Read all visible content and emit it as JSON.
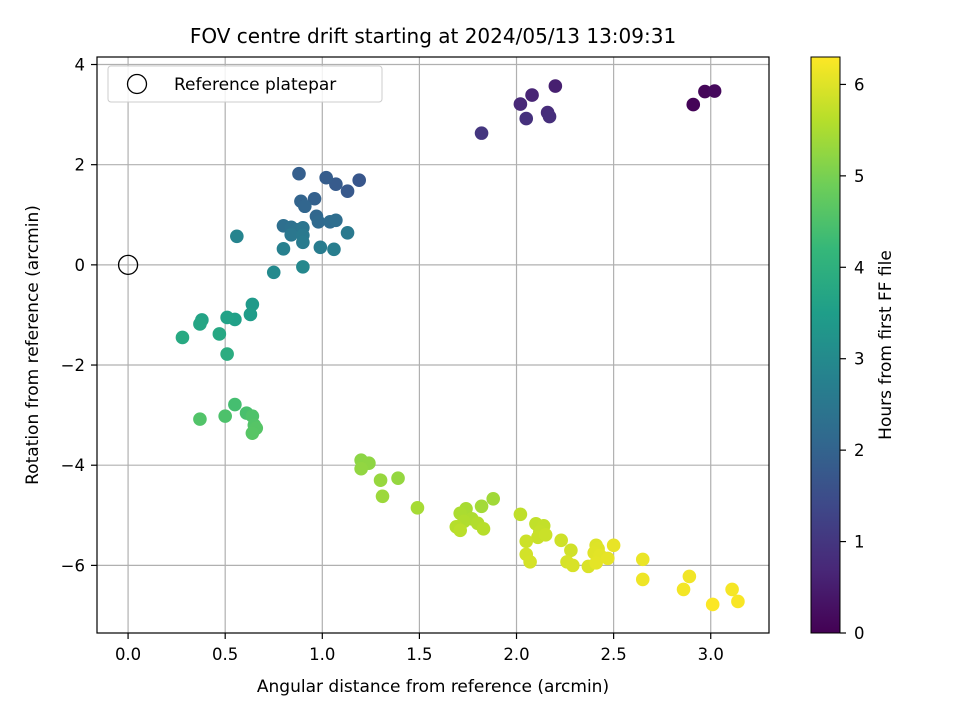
{
  "chart_data": {
    "type": "scatter",
    "title": "FOV centre drift starting at 2024/05/13 13:09:31",
    "xlabel": "Angular distance from reference (arcmin)",
    "ylabel": "Rotation from reference (arcmin)",
    "xlim": [
      -0.16,
      3.3
    ],
    "ylim": [
      -7.35,
      4.15
    ],
    "xticks": [
      0.0,
      0.5,
      1.0,
      1.5,
      2.0,
      2.5,
      3.0
    ],
    "xtick_labels": [
      "0.0",
      "0.5",
      "1.0",
      "1.5",
      "2.0",
      "2.5",
      "3.0"
    ],
    "yticks": [
      4,
      2,
      0,
      -2,
      -4,
      -6
    ],
    "ytick_labels": [
      "4",
      "2",
      "0",
      "−2",
      "−4",
      "−6"
    ],
    "grid": true,
    "legend": {
      "placement": "top-left",
      "entries": [
        "Reference platepar"
      ]
    },
    "reference_point": {
      "x": 0.0,
      "y": 0.0,
      "label": "Reference platepar",
      "marker": "hollow-circle"
    },
    "colorbar": {
      "label": "Hours from first FF file",
      "colormap": "viridis",
      "range": [
        0,
        6.3
      ],
      "ticks": [
        0,
        1,
        2,
        3,
        4,
        5,
        6
      ],
      "tick_labels": [
        "0",
        "1",
        "2",
        "3",
        "4",
        "5",
        "6"
      ],
      "colors": [
        "#440154",
        "#482878",
        "#3e4989",
        "#31688e",
        "#26828e",
        "#1f9e89",
        "#35b779",
        "#6ece58",
        "#b5de2b",
        "#fde725"
      ]
    },
    "points": [
      {
        "x": 2.91,
        "y": 3.2,
        "t": 0.05
      },
      {
        "x": 2.97,
        "y": 3.46,
        "t": 0.1
      },
      {
        "x": 3.02,
        "y": 3.47,
        "t": 0.15
      },
      {
        "x": 2.2,
        "y": 3.57,
        "t": 0.55
      },
      {
        "x": 2.08,
        "y": 3.39,
        "t": 0.65
      },
      {
        "x": 2.02,
        "y": 3.21,
        "t": 0.72
      },
      {
        "x": 2.16,
        "y": 3.04,
        "t": 0.78
      },
      {
        "x": 2.17,
        "y": 2.96,
        "t": 0.82
      },
      {
        "x": 2.05,
        "y": 2.92,
        "t": 0.88
      },
      {
        "x": 1.82,
        "y": 2.63,
        "t": 1.0
      },
      {
        "x": 1.19,
        "y": 1.69,
        "t": 1.7
      },
      {
        "x": 1.13,
        "y": 1.47,
        "t": 1.75
      },
      {
        "x": 1.07,
        "y": 1.61,
        "t": 1.8
      },
      {
        "x": 1.02,
        "y": 1.74,
        "t": 1.85
      },
      {
        "x": 0.88,
        "y": 1.82,
        "t": 1.9
      },
      {
        "x": 0.96,
        "y": 1.32,
        "t": 1.95
      },
      {
        "x": 0.89,
        "y": 1.27,
        "t": 2.0
      },
      {
        "x": 0.91,
        "y": 1.17,
        "t": 2.05
      },
      {
        "x": 0.97,
        "y": 0.97,
        "t": 2.1
      },
      {
        "x": 0.98,
        "y": 0.86,
        "t": 2.15
      },
      {
        "x": 1.04,
        "y": 0.86,
        "t": 2.2
      },
      {
        "x": 1.07,
        "y": 0.89,
        "t": 2.25
      },
      {
        "x": 0.8,
        "y": 0.78,
        "t": 2.3
      },
      {
        "x": 0.84,
        "y": 0.75,
        "t": 2.35
      },
      {
        "x": 0.87,
        "y": 0.7,
        "t": 2.4
      },
      {
        "x": 0.9,
        "y": 0.74,
        "t": 2.45
      },
      {
        "x": 0.84,
        "y": 0.6,
        "t": 2.5
      },
      {
        "x": 0.9,
        "y": 0.59,
        "t": 2.55
      },
      {
        "x": 1.13,
        "y": 0.64,
        "t": 2.55
      },
      {
        "x": 0.9,
        "y": 0.45,
        "t": 2.6
      },
      {
        "x": 0.99,
        "y": 0.35,
        "t": 2.65
      },
      {
        "x": 1.06,
        "y": 0.31,
        "t": 2.7
      },
      {
        "x": 0.8,
        "y": 0.32,
        "t": 2.75
      },
      {
        "x": 0.56,
        "y": 0.57,
        "t": 2.85
      },
      {
        "x": 0.9,
        "y": -0.04,
        "t": 2.95
      },
      {
        "x": 0.75,
        "y": -0.15,
        "t": 3.0
      },
      {
        "x": 0.64,
        "y": -0.79,
        "t": 3.4
      },
      {
        "x": 0.63,
        "y": -0.99,
        "t": 3.45
      },
      {
        "x": 0.55,
        "y": -1.09,
        "t": 3.55
      },
      {
        "x": 0.51,
        "y": -1.05,
        "t": 3.6
      },
      {
        "x": 0.38,
        "y": -1.1,
        "t": 3.65
      },
      {
        "x": 0.37,
        "y": -1.18,
        "t": 3.7
      },
      {
        "x": 0.47,
        "y": -1.38,
        "t": 3.75
      },
      {
        "x": 0.28,
        "y": -1.45,
        "t": 3.8
      },
      {
        "x": 0.51,
        "y": -1.78,
        "t": 3.9
      },
      {
        "x": 0.55,
        "y": -2.79,
        "t": 4.4
      },
      {
        "x": 0.61,
        "y": -2.96,
        "t": 4.45
      },
      {
        "x": 0.5,
        "y": -3.02,
        "t": 4.5
      },
      {
        "x": 0.64,
        "y": -3.02,
        "t": 4.52
      },
      {
        "x": 0.37,
        "y": -3.08,
        "t": 4.55
      },
      {
        "x": 0.65,
        "y": -3.2,
        "t": 4.57
      },
      {
        "x": 0.66,
        "y": -3.26,
        "t": 4.6
      },
      {
        "x": 0.64,
        "y": -3.36,
        "t": 4.62
      },
      {
        "x": 1.2,
        "y": -3.9,
        "t": 5.2
      },
      {
        "x": 1.24,
        "y": -3.96,
        "t": 5.22
      },
      {
        "x": 1.2,
        "y": -4.07,
        "t": 5.25
      },
      {
        "x": 1.39,
        "y": -4.26,
        "t": 5.28
      },
      {
        "x": 1.3,
        "y": -4.3,
        "t": 5.3
      },
      {
        "x": 1.31,
        "y": -4.62,
        "t": 5.35
      },
      {
        "x": 1.88,
        "y": -4.67,
        "t": 5.4
      },
      {
        "x": 1.82,
        "y": -4.82,
        "t": 5.42
      },
      {
        "x": 1.49,
        "y": -4.85,
        "t": 5.45
      },
      {
        "x": 1.74,
        "y": -4.87,
        "t": 5.47
      },
      {
        "x": 1.71,
        "y": -4.96,
        "t": 5.5
      },
      {
        "x": 1.77,
        "y": -5.07,
        "t": 5.52
      },
      {
        "x": 1.73,
        "y": -5.12,
        "t": 5.55
      },
      {
        "x": 1.8,
        "y": -5.16,
        "t": 5.57
      },
      {
        "x": 1.69,
        "y": -5.23,
        "t": 5.6
      },
      {
        "x": 1.83,
        "y": -5.27,
        "t": 5.62
      },
      {
        "x": 1.71,
        "y": -5.3,
        "t": 5.65
      },
      {
        "x": 2.02,
        "y": -4.98,
        "t": 5.7
      },
      {
        "x": 2.1,
        "y": -5.17,
        "t": 5.72
      },
      {
        "x": 2.14,
        "y": -5.21,
        "t": 5.74
      },
      {
        "x": 2.12,
        "y": -5.33,
        "t": 5.76
      },
      {
        "x": 2.11,
        "y": -5.44,
        "t": 5.78
      },
      {
        "x": 2.15,
        "y": -5.39,
        "t": 5.8
      },
      {
        "x": 2.05,
        "y": -5.52,
        "t": 5.82
      },
      {
        "x": 2.23,
        "y": -5.5,
        "t": 5.84
      },
      {
        "x": 2.28,
        "y": -5.7,
        "t": 5.86
      },
      {
        "x": 2.05,
        "y": -5.78,
        "t": 5.88
      },
      {
        "x": 2.07,
        "y": -5.93,
        "t": 5.9
      },
      {
        "x": 2.26,
        "y": -5.93,
        "t": 5.92
      },
      {
        "x": 2.29,
        "y": -6.0,
        "t": 5.94
      },
      {
        "x": 2.37,
        "y": -6.02,
        "t": 5.96
      },
      {
        "x": 2.41,
        "y": -5.6,
        "t": 5.98
      },
      {
        "x": 2.42,
        "y": -5.67,
        "t": 6.0
      },
      {
        "x": 2.4,
        "y": -5.75,
        "t": 6.02
      },
      {
        "x": 2.43,
        "y": -5.8,
        "t": 6.04
      },
      {
        "x": 2.41,
        "y": -5.95,
        "t": 6.06
      },
      {
        "x": 2.47,
        "y": -5.86,
        "t": 6.08
      },
      {
        "x": 2.5,
        "y": -5.6,
        "t": 6.1
      },
      {
        "x": 2.65,
        "y": -5.88,
        "t": 6.12
      },
      {
        "x": 2.65,
        "y": -6.28,
        "t": 6.15
      },
      {
        "x": 2.89,
        "y": -6.22,
        "t": 6.18
      },
      {
        "x": 2.86,
        "y": -6.48,
        "t": 6.2
      },
      {
        "x": 3.11,
        "y": -6.48,
        "t": 6.22
      },
      {
        "x": 3.14,
        "y": -6.72,
        "t": 6.25
      },
      {
        "x": 3.01,
        "y": -6.78,
        "t": 6.28
      }
    ]
  }
}
